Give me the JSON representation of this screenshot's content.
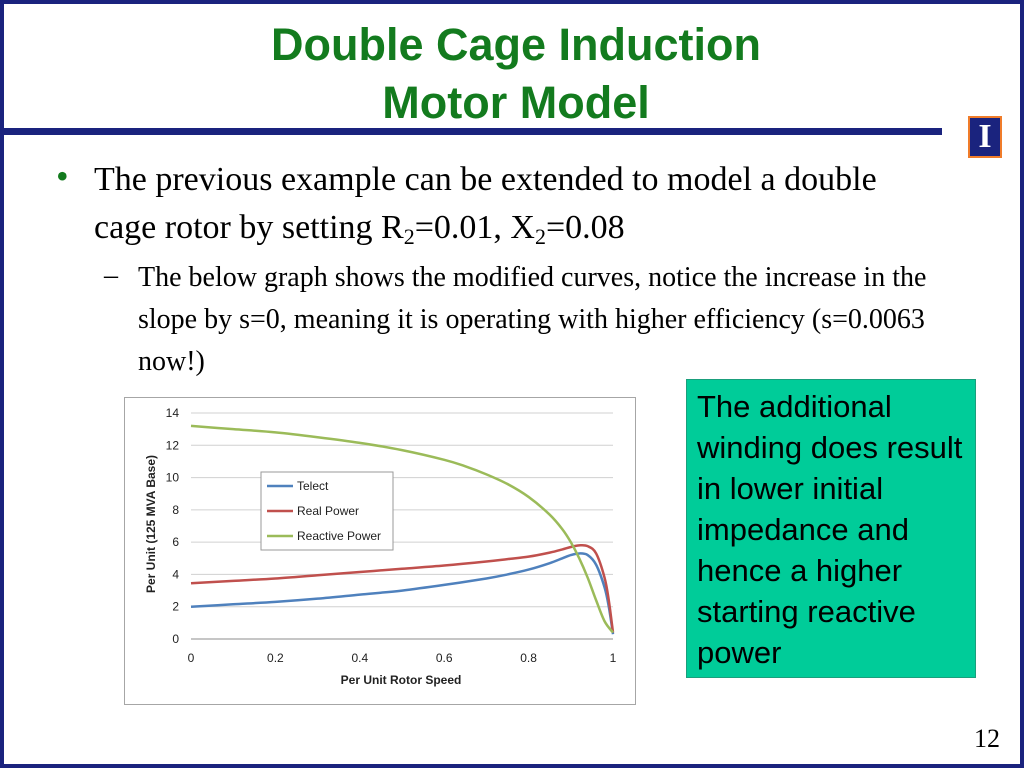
{
  "slide": {
    "title_line1": "Double Cage Induction",
    "title_line2": "Motor Model",
    "logo_letter": "I",
    "bullet_dot": "•",
    "bullet_parts": {
      "a": "The previous example can be extended to model a double cage rotor by setting R",
      "a_sub": "2",
      "b": "=0.01, X",
      "b_sub": "2",
      "c": "=0.08"
    },
    "sub_dash": "–",
    "sub_bullet": "The below graph shows the modified curves, notice the increase in the slope by s=0, meaning it is operating with higher efficiency (s=0.0063 now!)",
    "note": "The additional winding does result in lower initial impedance and hence a higher starting reactive power",
    "page_number": "12"
  },
  "colors": {
    "title": "#137b1e",
    "rule": "#1a237e",
    "note_bg": "#00cc99",
    "telect": "#4f81bd",
    "real_power": "#c0504d",
    "reactive_power": "#9bbb59"
  },
  "chart_data": {
    "type": "line",
    "title": "",
    "xlabel": "Per Unit Rotor Speed",
    "ylabel": "Per Unit (125 MVA Base)",
    "xlim": [
      0,
      1
    ],
    "ylim": [
      0,
      14
    ],
    "xticks": [
      0,
      0.2,
      0.4,
      0.6,
      0.8,
      1
    ],
    "xtick_labels": [
      "0",
      "0.2",
      "0.4",
      "0.6",
      "0.8",
      "1"
    ],
    "yticks": [
      0,
      2,
      4,
      6,
      8,
      10,
      12,
      14
    ],
    "ytick_labels": [
      "0",
      "2",
      "4",
      "6",
      "8",
      "10",
      "12",
      "14"
    ],
    "grid": "horizontal",
    "legend_position": "center-left",
    "series": [
      {
        "name": "Telect",
        "x": [
          0,
          0.1,
          0.2,
          0.3,
          0.4,
          0.5,
          0.6,
          0.7,
          0.75,
          0.8,
          0.85,
          0.88,
          0.9,
          0.92,
          0.94,
          0.96,
          0.98,
          0.99,
          1.0
        ],
        "y": [
          2.0,
          2.15,
          2.3,
          2.5,
          2.75,
          3.0,
          3.35,
          3.75,
          4.0,
          4.3,
          4.7,
          5.0,
          5.2,
          5.3,
          5.2,
          4.6,
          3.2,
          2.0,
          0.3
        ]
      },
      {
        "name": "Real Power",
        "x": [
          0,
          0.1,
          0.2,
          0.3,
          0.4,
          0.5,
          0.6,
          0.7,
          0.75,
          0.8,
          0.85,
          0.88,
          0.9,
          0.92,
          0.94,
          0.96,
          0.98,
          0.99,
          1.0
        ],
        "y": [
          3.45,
          3.6,
          3.75,
          3.95,
          4.15,
          4.35,
          4.55,
          4.8,
          4.95,
          5.1,
          5.35,
          5.55,
          5.7,
          5.8,
          5.75,
          5.3,
          3.8,
          2.4,
          0.4
        ]
      },
      {
        "name": "Reactive Power",
        "x": [
          0,
          0.1,
          0.2,
          0.3,
          0.4,
          0.5,
          0.6,
          0.65,
          0.7,
          0.75,
          0.8,
          0.85,
          0.88,
          0.9,
          0.92,
          0.94,
          0.96,
          0.98,
          1.0
        ],
        "y": [
          13.2,
          13.0,
          12.8,
          12.5,
          12.15,
          11.7,
          11.1,
          10.7,
          10.2,
          9.6,
          8.8,
          7.7,
          6.8,
          6.0,
          5.0,
          3.8,
          2.4,
          1.1,
          0.4
        ]
      }
    ]
  }
}
